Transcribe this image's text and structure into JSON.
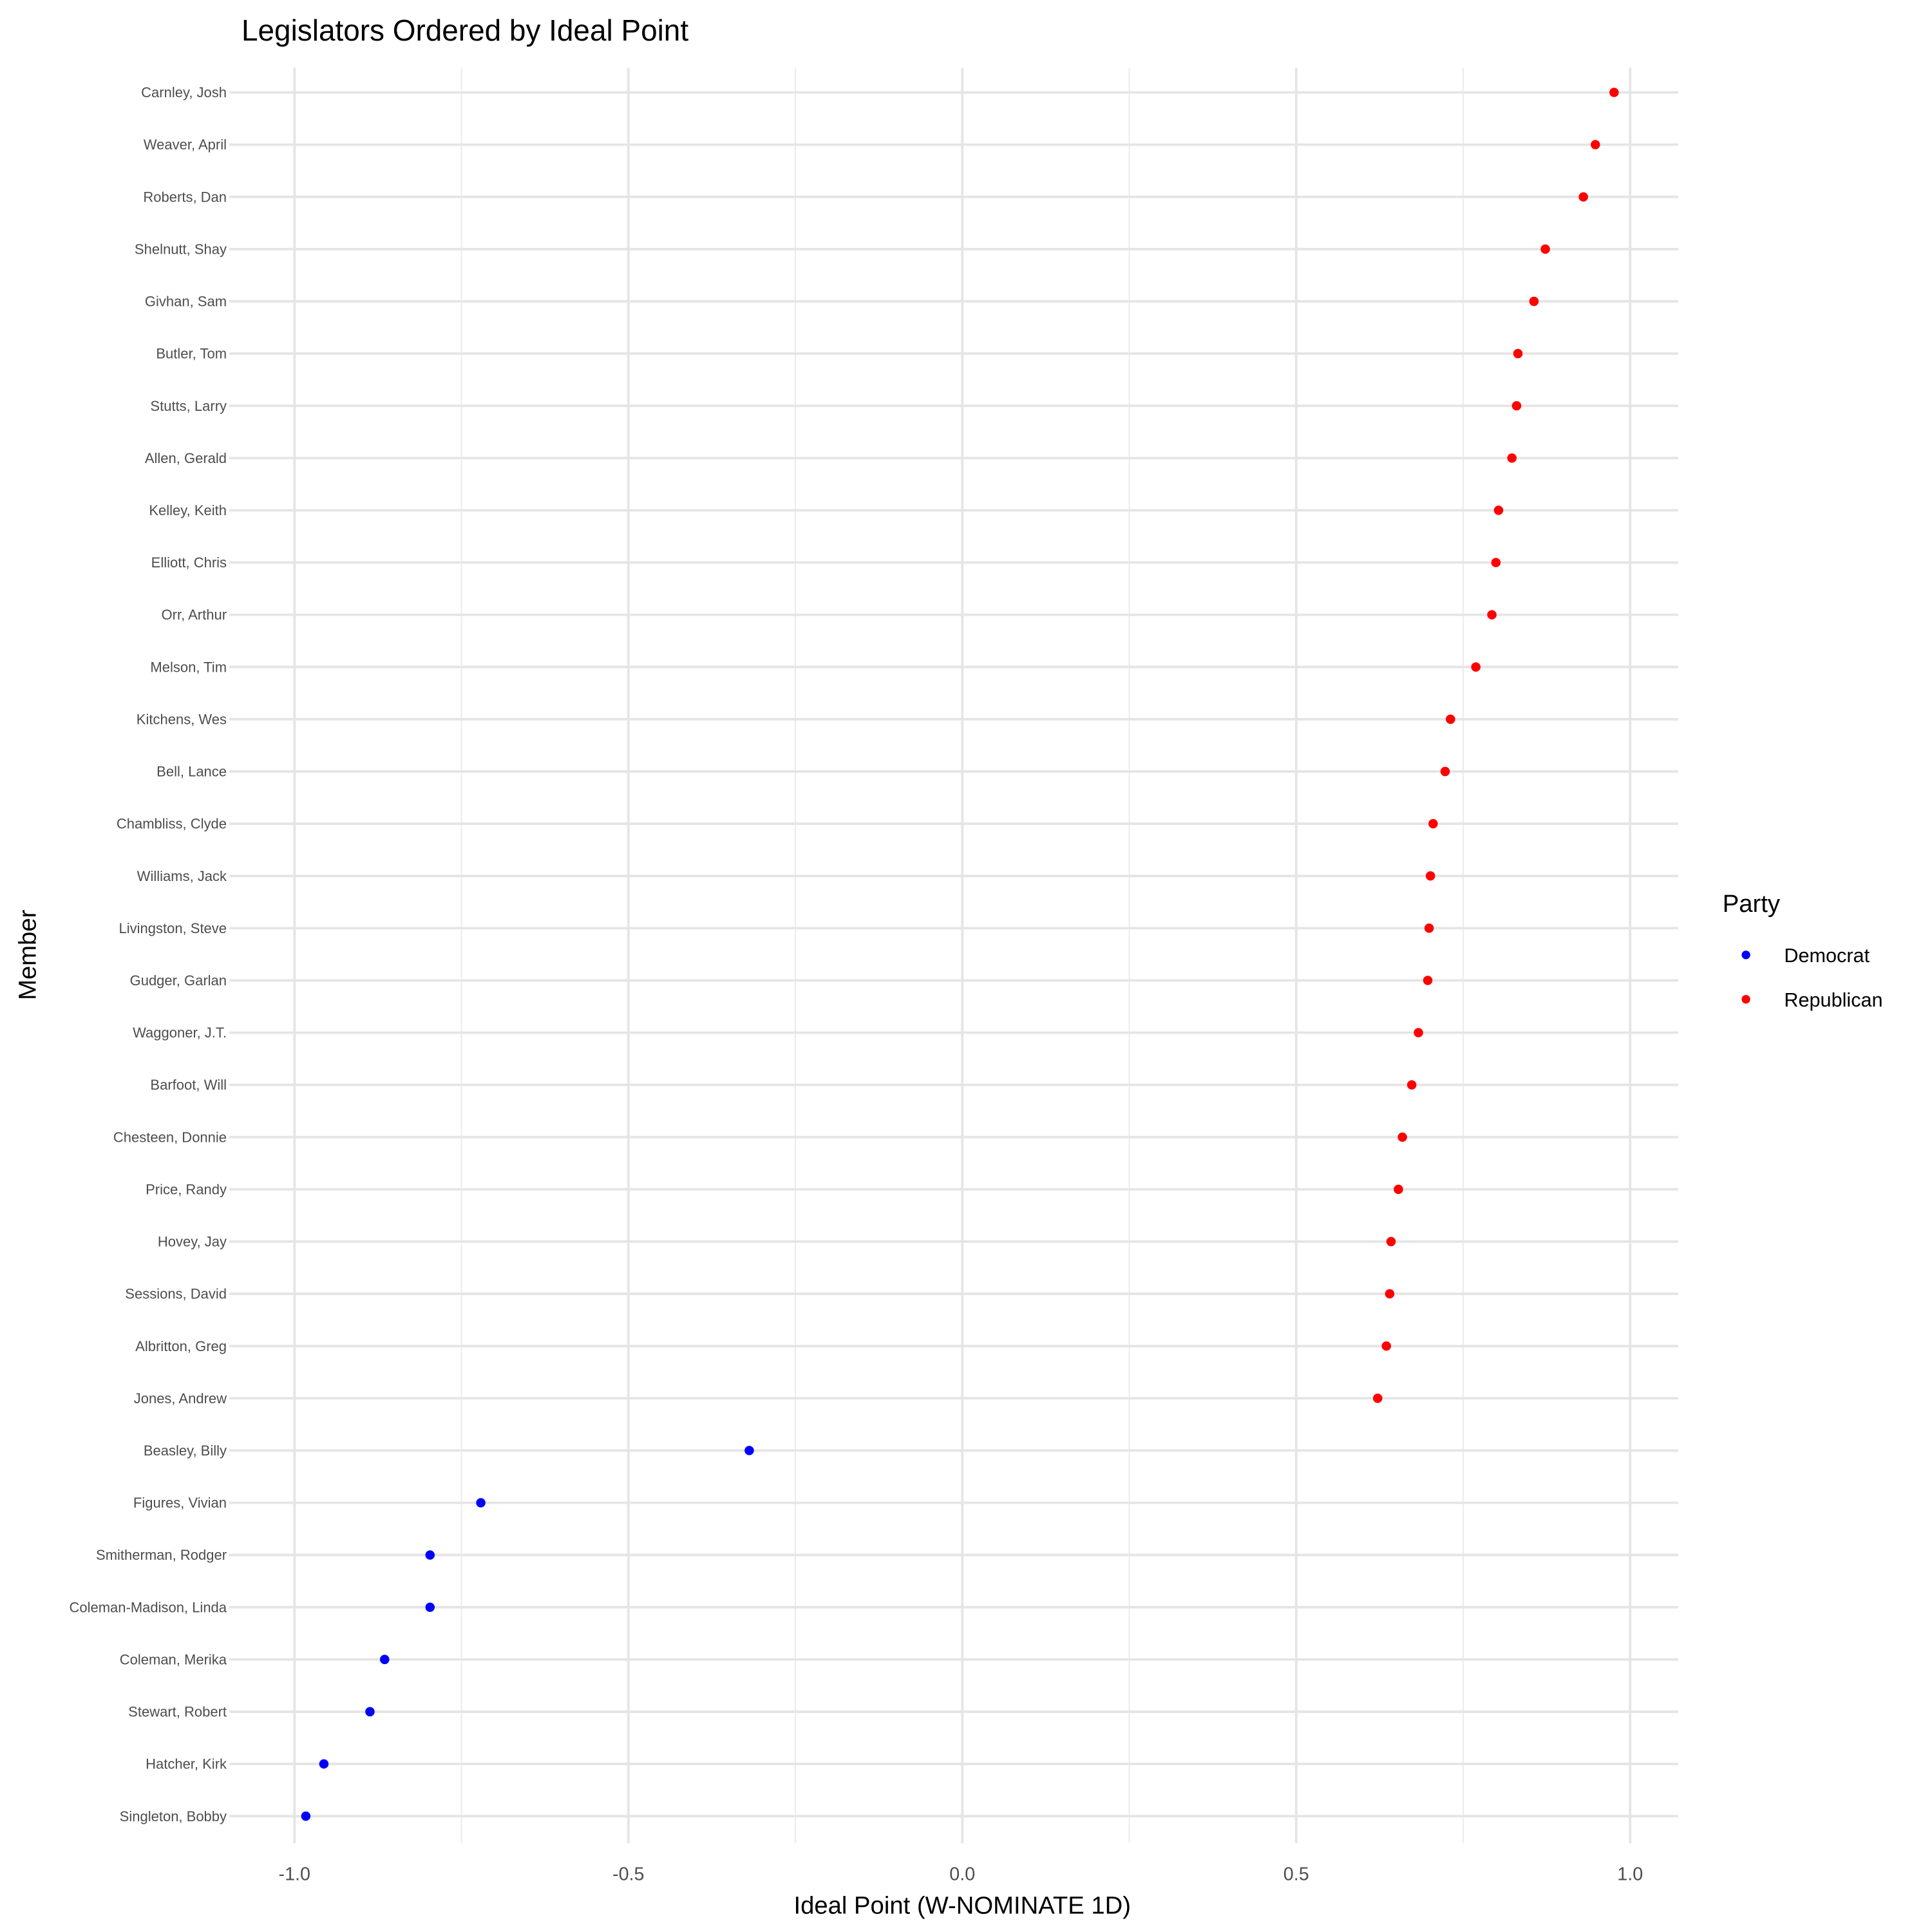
{
  "chart_data": {
    "type": "scatter",
    "title": "Legislators Ordered by Ideal Point",
    "xlabel": "Ideal Point (W-NOMINATE 1D)",
    "ylabel": "Member",
    "xlim": [
      -1.1,
      1.08
    ],
    "xticks": [
      -1.0,
      -0.5,
      0.0,
      0.5,
      1.0
    ],
    "xtick_labels": [
      "-1.0",
      "-0.5",
      "0.0",
      "0.5",
      "1.0"
    ],
    "grid": true,
    "legend": {
      "title": "Party",
      "placement": "right",
      "entries": [
        {
          "label": "Democrat",
          "color": "#0000ff"
        },
        {
          "label": "Republican",
          "color": "#ff0000"
        }
      ]
    },
    "points": [
      {
        "member": "Carnley, Josh",
        "party": "Republican",
        "x": 0.976
      },
      {
        "member": "Weaver, April",
        "party": "Republican",
        "x": 0.948
      },
      {
        "member": "Roberts, Dan",
        "party": "Republican",
        "x": 0.93
      },
      {
        "member": "Shelnutt, Shay",
        "party": "Republican",
        "x": 0.873
      },
      {
        "member": "Givhan, Sam",
        "party": "Republican",
        "x": 0.856
      },
      {
        "member": "Butler, Tom",
        "party": "Republican",
        "x": 0.832
      },
      {
        "member": "Stutts, Larry",
        "party": "Republican",
        "x": 0.83
      },
      {
        "member": "Allen, Gerald",
        "party": "Republican",
        "x": 0.823
      },
      {
        "member": "Kelley, Keith",
        "party": "Republican",
        "x": 0.803
      },
      {
        "member": "Elliott, Chris",
        "party": "Republican",
        "x": 0.799
      },
      {
        "member": "Orr, Arthur",
        "party": "Republican",
        "x": 0.793
      },
      {
        "member": "Melson, Tim",
        "party": "Republican",
        "x": 0.769
      },
      {
        "member": "Kitchens, Wes",
        "party": "Republican",
        "x": 0.731
      },
      {
        "member": "Bell, Lance",
        "party": "Republican",
        "x": 0.723
      },
      {
        "member": "Chambliss, Clyde",
        "party": "Republican",
        "x": 0.705
      },
      {
        "member": "Williams, Jack",
        "party": "Republican",
        "x": 0.701
      },
      {
        "member": "Livingston, Steve",
        "party": "Republican",
        "x": 0.699
      },
      {
        "member": "Gudger, Garlan",
        "party": "Republican",
        "x": 0.697
      },
      {
        "member": "Waggoner, J.T.",
        "party": "Republican",
        "x": 0.683
      },
      {
        "member": "Barfoot, Will",
        "party": "Republican",
        "x": 0.673
      },
      {
        "member": "Chesteen, Donnie",
        "party": "Republican",
        "x": 0.659
      },
      {
        "member": "Price, Randy",
        "party": "Republican",
        "x": 0.653
      },
      {
        "member": "Hovey, Jay",
        "party": "Republican",
        "x": 0.642
      },
      {
        "member": "Sessions, David",
        "party": "Republican",
        "x": 0.64
      },
      {
        "member": "Albritton, Greg",
        "party": "Republican",
        "x": 0.635
      },
      {
        "member": "Jones, Andrew",
        "party": "Republican",
        "x": 0.622
      },
      {
        "member": "Beasley, Billy",
        "party": "Democrat",
        "x": -0.319
      },
      {
        "member": "Figures, Vivian",
        "party": "Democrat",
        "x": -0.721
      },
      {
        "member": "Smitherman, Rodger",
        "party": "Democrat",
        "x": -0.797
      },
      {
        "member": "Coleman-Madison, Linda",
        "party": "Democrat",
        "x": -0.797
      },
      {
        "member": "Coleman, Merika",
        "party": "Democrat",
        "x": -0.865
      },
      {
        "member": "Stewart, Robert",
        "party": "Democrat",
        "x": -0.887
      },
      {
        "member": "Hatcher, Kirk",
        "party": "Democrat",
        "x": -0.956
      },
      {
        "member": "Singleton, Bobby",
        "party": "Democrat",
        "x": -0.983
      }
    ]
  }
}
